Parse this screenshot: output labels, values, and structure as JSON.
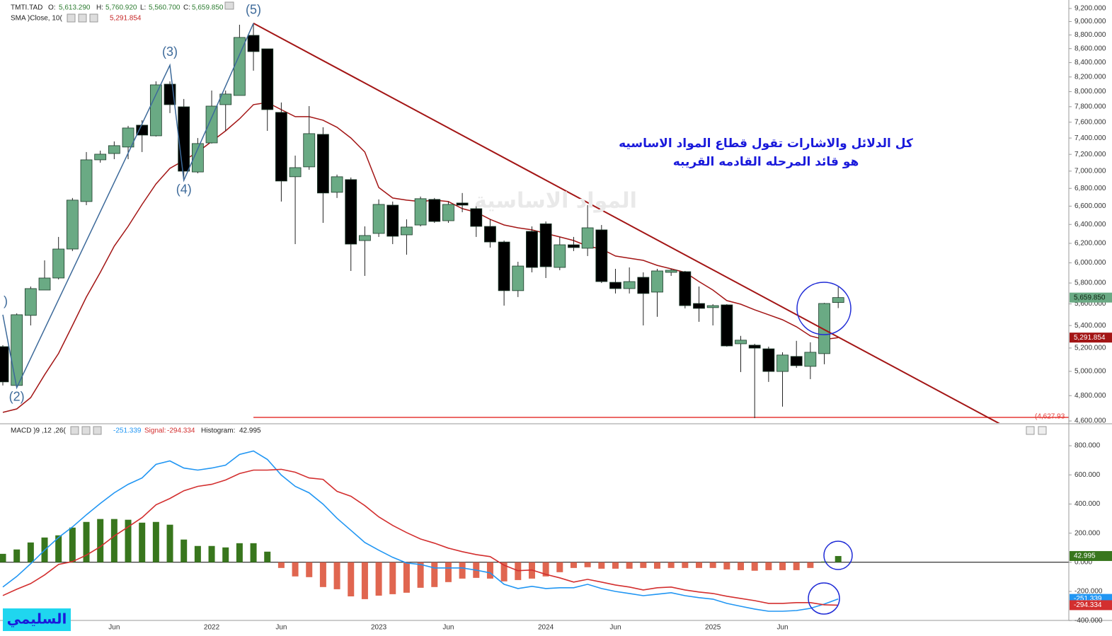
{
  "chart_data": [
    {
      "type": "candlestick",
      "symbol": "TMTI.TAD",
      "legend": [
        {
          "key": "O:",
          "text": "5,613.290"
        },
        {
          "key": "H:",
          "text": "5,760.920"
        },
        {
          "key": "L:",
          "text": "5,560.700"
        },
        {
          "key": "C:",
          "text": "5,659.850"
        }
      ],
      "categories": [
        null,
        null,
        null,
        null,
        null,
        null,
        null,
        null,
        "Jun",
        null,
        null,
        null,
        null,
        null,
        null,
        "2022",
        null,
        null,
        null,
        null,
        "Jun",
        null,
        null,
        null,
        null,
        null,
        null,
        "2023",
        null,
        null,
        null,
        null,
        "Jun",
        null,
        null,
        null,
        null,
        null,
        null,
        "2024",
        null,
        null,
        null,
        null,
        "Jun",
        null,
        null,
        null,
        null,
        null,
        null,
        "2025",
        null,
        null,
        null,
        null,
        "Jun",
        null,
        null,
        null,
        null
      ],
      "open": [
        5212,
        4883,
        5493,
        5732,
        5849,
        6141,
        6651,
        7134,
        7210,
        7289,
        7562,
        7428,
        8101,
        7799,
        6990,
        7340,
        7827,
        7949,
        8794,
        8597,
        7726,
        6934,
        7050,
        7446,
        6755,
        6901,
        6229,
        6304,
        6611,
        6289,
        6394,
        6675,
        6440,
        6635,
        6572,
        6379,
        6214,
        5726,
        6326,
        6407,
        5954,
        6185,
        6149,
        6342,
        5807,
        5746,
        5856,
        5712,
        5905,
        5912,
        5604,
        5565,
        5591,
        5237,
        5225,
        5193,
        4999,
        5127,
        5042,
        5151,
        5613.29
      ],
      "high": [
        5225,
        5512,
        5766,
        6025,
        6267,
        6691,
        7228,
        7245,
        7358,
        7553,
        7625,
        8140,
        8140,
        7902,
        7400,
        8015,
        8015,
        8952,
        8974,
        8597,
        7855,
        7185,
        7808,
        7535,
        6959,
        6926,
        6379,
        6675,
        6651,
        6455,
        6707,
        6691,
        6651,
        6747,
        6611,
        6455,
        6229,
        6011,
        6379,
        6432,
        6267,
        6267,
        6611,
        6394,
        5940,
        5954,
        5905,
        5940,
        5940,
        5919,
        5766,
        5597,
        5597,
        5307,
        5237,
        5212,
        5163,
        5263,
        5250,
        5610,
        5760.92
      ],
      "low": [
        4883,
        4865,
        5401,
        5732,
        5835,
        6120,
        6611,
        7100,
        7142,
        7142,
        7228,
        7419,
        7717,
        6893,
        6974,
        7332,
        7490,
        7949,
        8287,
        7490,
        6651,
        6192,
        7016,
        6417,
        6691,
        5919,
        5870,
        6267,
        6192,
        6083,
        6379,
        6417,
        6417,
        6533,
        6267,
        6156,
        5584,
        5665,
        5905,
        5849,
        5926,
        6120,
        6069,
        5800,
        5699,
        5699,
        5401,
        5480,
        5870,
        5558,
        5434,
        5401,
        5212,
        4994,
        4622,
        4912,
        4712,
        5030,
        4935,
        5060,
        5560.7
      ],
      "close": [
        4912,
        5499,
        5746,
        5849,
        6141,
        6667,
        7134,
        7202,
        7306,
        7526,
        7437,
        8092,
        7827,
        6999,
        7332,
        7808,
        7968,
        8763,
        8557,
        7762,
        6884,
        7041,
        7455,
        6747,
        6934,
        6192,
        6282,
        6619,
        6274,
        6372,
        6683,
        6432,
        6619,
        6611,
        6379,
        6214,
        5726,
        5968,
        5954,
        5961,
        6185,
        6156,
        6364,
        5814,
        5746,
        5814,
        5699,
        5919,
        5926,
        5584,
        5558,
        5584,
        5218,
        5269,
        5199,
        4999,
        5139,
        5048,
        5163,
        5604,
        5659.85
      ],
      "up_color": "#6aaa84",
      "down_color": "#000000",
      "last_label": "5,659.850",
      "overlays": [
        {
          "name": "SMA )Close, 10(",
          "color": "#a31515",
          "last_label": "5,291.854",
          "values": [
            4667,
            4694,
            4784,
            4971,
            5153,
            5401,
            5665,
            5905,
            6171,
            6379,
            6619,
            6851,
            7032,
            7126,
            7228,
            7358,
            7490,
            7643,
            7827,
            7855,
            7762,
            7671,
            7671,
            7625,
            7535,
            7400,
            7228,
            6810,
            6691,
            6667,
            6651,
            6667,
            6651,
            6572,
            6533,
            6455,
            6394,
            6364,
            6342,
            6304,
            6267,
            6229,
            6171,
            6141,
            6069,
            6047,
            6025,
            5975,
            5940,
            5905,
            5814,
            5732,
            5631,
            5597,
            5545,
            5499,
            5453,
            5389,
            5307,
            5275,
            5291.854
          ]
        }
      ],
      "log_scale": true,
      "ylim": [
        4573,
        9332
      ],
      "yticks": [
        {
          "value": 4600,
          "label": "4,600.000"
        },
        {
          "value": 4800,
          "label": "4,800.000"
        },
        {
          "value": 5000,
          "label": "5,000.000"
        },
        {
          "value": 5200,
          "label": "5,200.000"
        },
        {
          "value": 5400,
          "label": "5,400.000"
        },
        {
          "value": 5600,
          "label": "5,600.000"
        },
        {
          "value": 5800,
          "label": "5,800.000"
        },
        {
          "value": 6000,
          "label": "6,000.000"
        },
        {
          "value": 6200,
          "label": "6,200.000"
        },
        {
          "value": 6400,
          "label": "6,400.000"
        },
        {
          "value": 6600,
          "label": "6,600.000"
        },
        {
          "value": 6800,
          "label": "6,800.000"
        },
        {
          "value": 7000,
          "label": "7,000.000"
        },
        {
          "value": 7200,
          "label": "7,200.000"
        },
        {
          "value": 7400,
          "label": "7,400.000"
        },
        {
          "value": 7600,
          "label": "7,600.000"
        },
        {
          "value": 7800,
          "label": "7,800.000"
        },
        {
          "value": 8000,
          "label": "8,000.000"
        },
        {
          "value": 8200,
          "label": "8,200.000"
        },
        {
          "value": 8400,
          "label": "8,400.000"
        },
        {
          "value": 8600,
          "label": "8,600.000"
        },
        {
          "value": 8800,
          "label": "8,800.000"
        },
        {
          "value": 9000,
          "label": "9,000.000"
        },
        {
          "value": 9200,
          "label": "9,200.000"
        }
      ],
      "support": {
        "value": 4627.93,
        "label": "(4,627.93",
        "color": "#e53935"
      },
      "trendline": {
        "color": "#a31515",
        "points": [
          {
            "index": 18,
            "value": 8974
          },
          {
            "index": 71.7,
            "value": 4573
          }
        ]
      },
      "waves": {
        "color": "#3d6a9a",
        "points": [
          {
            "label": ")",
            "index": 0,
            "value": 5499
          },
          {
            "label": "(2)",
            "index": 1,
            "value": 4865
          },
          {
            "label": "(3)",
            "index": 12,
            "value": 8364
          },
          {
            "label": "(4)",
            "index": 13,
            "value": 6893
          },
          {
            "label": "(5)",
            "index": 18,
            "value": 8974
          }
        ]
      },
      "annotation": [
        "كل الدلائل والاشارات تقول قطاع المواد الاساسيه",
        "هو قائد المرحله القادمه القريبه"
      ],
      "watermark": "المواد الاساسية",
      "signature": "السليمي"
    },
    {
      "type": "macd",
      "title": "MACD )9 ,12 ,26(",
      "series": [
        {
          "name": "Histogram:",
          "kind": "histogram",
          "colors": [
            "#38761d",
            "#e06650"
          ],
          "values": [
            58,
            88,
            136,
            170,
            185,
            238,
            277,
            297,
            297,
            292,
            272,
            277,
            258,
            156,
            112,
            112,
            102,
            131,
            131,
            73,
            -39,
            -97,
            -102,
            -170,
            -185,
            -234,
            -253,
            -229,
            -219,
            -209,
            -175,
            -170,
            -136,
            -112,
            -107,
            -112,
            -131,
            -122,
            -112,
            -97,
            -68,
            -39,
            -34,
            -44,
            -44,
            -44,
            -39,
            -44,
            -39,
            -39,
            -39,
            -39,
            -49,
            -54,
            -58,
            -54,
            -54,
            -54,
            -39,
            5,
            42.995
          ]
        },
        {
          "kind": "line",
          "color": "#2196f3",
          "values": [
            -170,
            -97,
            -10,
            83,
            170,
            243,
            326,
            404,
            477,
            535,
            579,
            672,
            696,
            647,
            633,
            647,
            667,
            740,
            764,
            706,
            599,
            521,
            477,
            399,
            302,
            219,
            136,
            83,
            34,
            -5,
            -15,
            -39,
            -39,
            -39,
            -54,
            -73,
            -151,
            -180,
            -165,
            -180,
            -175,
            -175,
            -151,
            -180,
            -200,
            -214,
            -229,
            -219,
            -209,
            -229,
            -243,
            -253,
            -282,
            -302,
            -321,
            -336,
            -336,
            -331,
            -316,
            -287,
            -251.339
          ]
        },
        {
          "name": "Signal:",
          "kind": "line",
          "color": "#d32f2f",
          "values": [
            -228,
            -185,
            -146,
            -87,
            -15,
            5,
            49,
            107,
            180,
            243,
            307,
            395,
            438,
            491,
            521,
            535,
            565,
            609,
            633,
            633,
            638,
            618,
            579,
            569,
            487,
            453,
            389,
            312,
            253,
            204,
            160,
            131,
            97,
            73,
            53,
            39,
            -20,
            -58,
            -53,
            -83,
            -107,
            -136,
            -117,
            -136,
            -156,
            -170,
            -190,
            -175,
            -170,
            -190,
            -204,
            -214,
            -233,
            -248,
            -263,
            -282,
            -282,
            -277,
            -277,
            -292,
            -294.334
          ]
        }
      ],
      "ylim": [
        -404,
        946
      ],
      "yticks": [
        {
          "value": -400,
          "label": "-400.000"
        },
        {
          "value": -200,
          "label": "-200.000"
        },
        {
          "value": 0,
          "label": "0.000"
        },
        {
          "value": 200,
          "label": "200.000"
        },
        {
          "value": 400,
          "label": "400.000"
        },
        {
          "value": 600,
          "label": "600.000"
        },
        {
          "value": 800,
          "label": "800.000"
        }
      ]
    }
  ]
}
